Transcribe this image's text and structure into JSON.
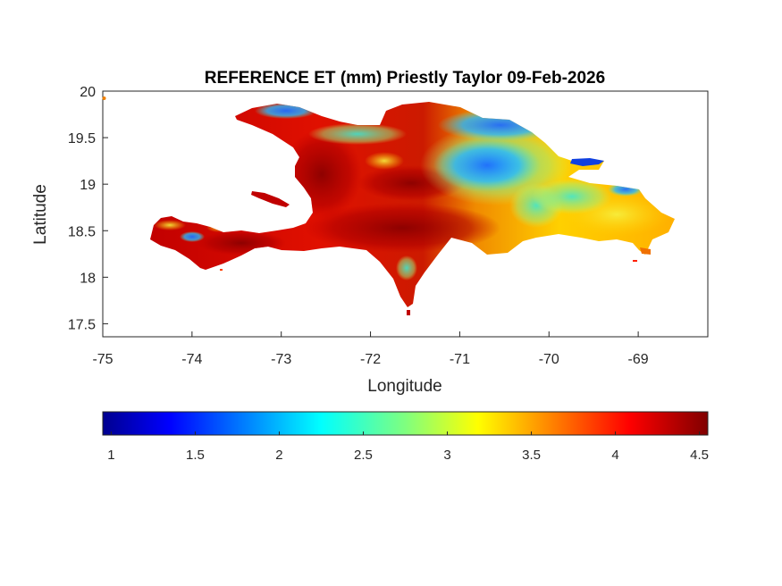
{
  "title": "REFERENCE ET (mm) Priestly Taylor 09-Feb-2026",
  "xlabel": "Longitude",
  "ylabel": "Latitude",
  "x_ticks": [
    "-75",
    "-74",
    "-73",
    "-72",
    "-71",
    "-70",
    "-69"
  ],
  "y_ticks": [
    "20",
    "19.5",
    "19",
    "18.5",
    "18",
    "17.5"
  ],
  "colorbar": {
    "ticks": [
      "1",
      "1.5",
      "2",
      "2.5",
      "3",
      "3.5",
      "4",
      "4.5"
    ],
    "colormap": "jet",
    "range": [
      0.95,
      4.55
    ]
  },
  "map_extent": {
    "lon": [
      -75,
      -68.22
    ],
    "lat": [
      17.36,
      20
    ]
  },
  "colors": {
    "axis": "#262626",
    "low": "#00008f",
    "mid": "#ffff00",
    "high": "#800000"
  }
}
